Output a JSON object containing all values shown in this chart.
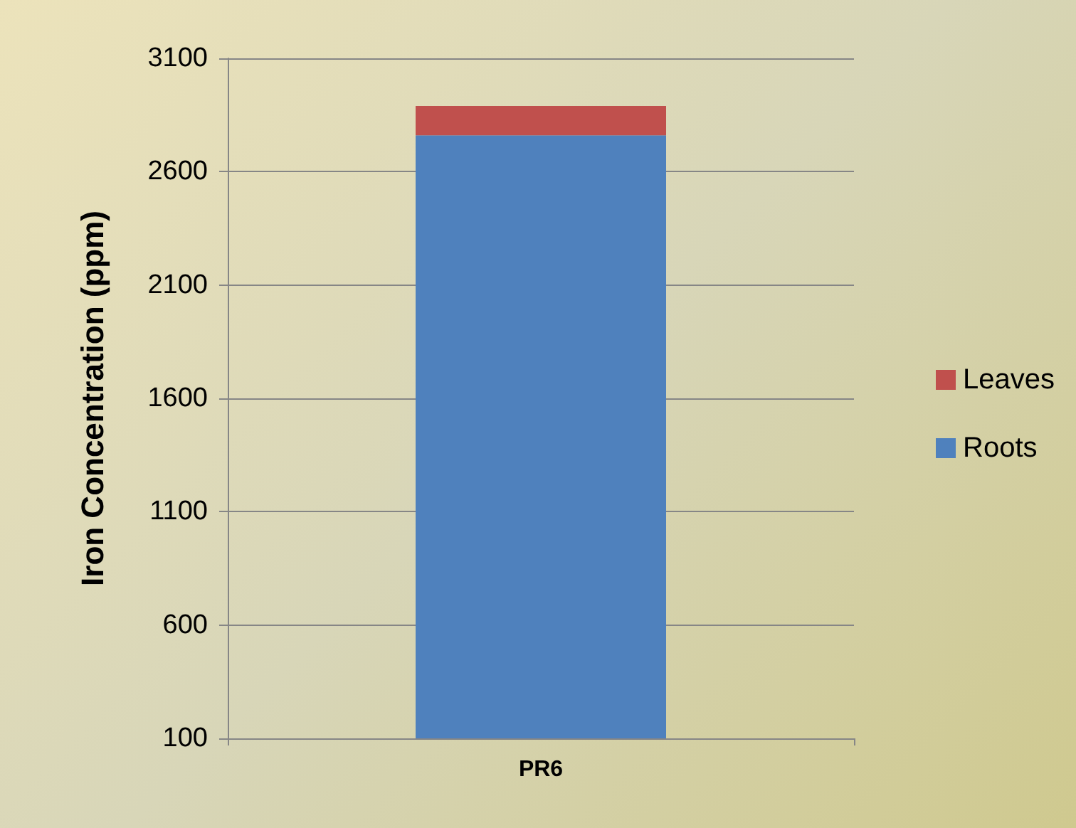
{
  "chart_data": {
    "type": "bar",
    "ylabel": "Iron Concentration (ppm)",
    "categories": [
      "PR6"
    ],
    "series": [
      {
        "name": "Roots",
        "color": "#4f81bd",
        "values": [
          2760
        ]
      },
      {
        "name": "Leaves",
        "color": "#c0504d",
        "values": [
          130
        ]
      }
    ],
    "stacked": true,
    "ylim": [
      100,
      3100
    ],
    "yticks": [
      100,
      600,
      1100,
      1600,
      2100,
      2600,
      3100
    ],
    "grid": "y",
    "legend": "right"
  }
}
